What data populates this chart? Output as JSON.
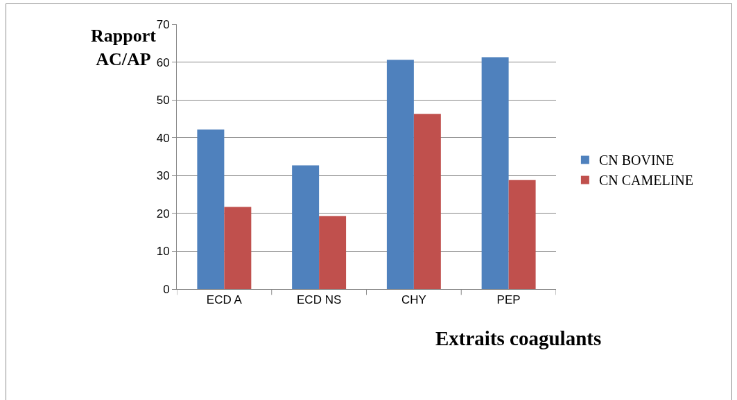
{
  "chart_data": {
    "type": "bar",
    "ylabel": "Rapport AC/AP",
    "xlabel": "Extraits coagulants",
    "categories": [
      "ECD A",
      "ECD NS",
      "CHY",
      "PEP"
    ],
    "series": [
      {
        "name": "CN BOVINE",
        "color": "#4f81bd",
        "values": [
          42.2,
          32.7,
          60.6,
          61.3
        ]
      },
      {
        "name": "CN CAMELINE",
        "color": "#c0504d",
        "values": [
          21.7,
          19.3,
          46.3,
          28.8
        ]
      }
    ],
    "ylim": [
      0,
      70
    ],
    "yticks": [
      0,
      10,
      20,
      30,
      40,
      50,
      60,
      70
    ],
    "grid": "y",
    "legend": "right"
  }
}
